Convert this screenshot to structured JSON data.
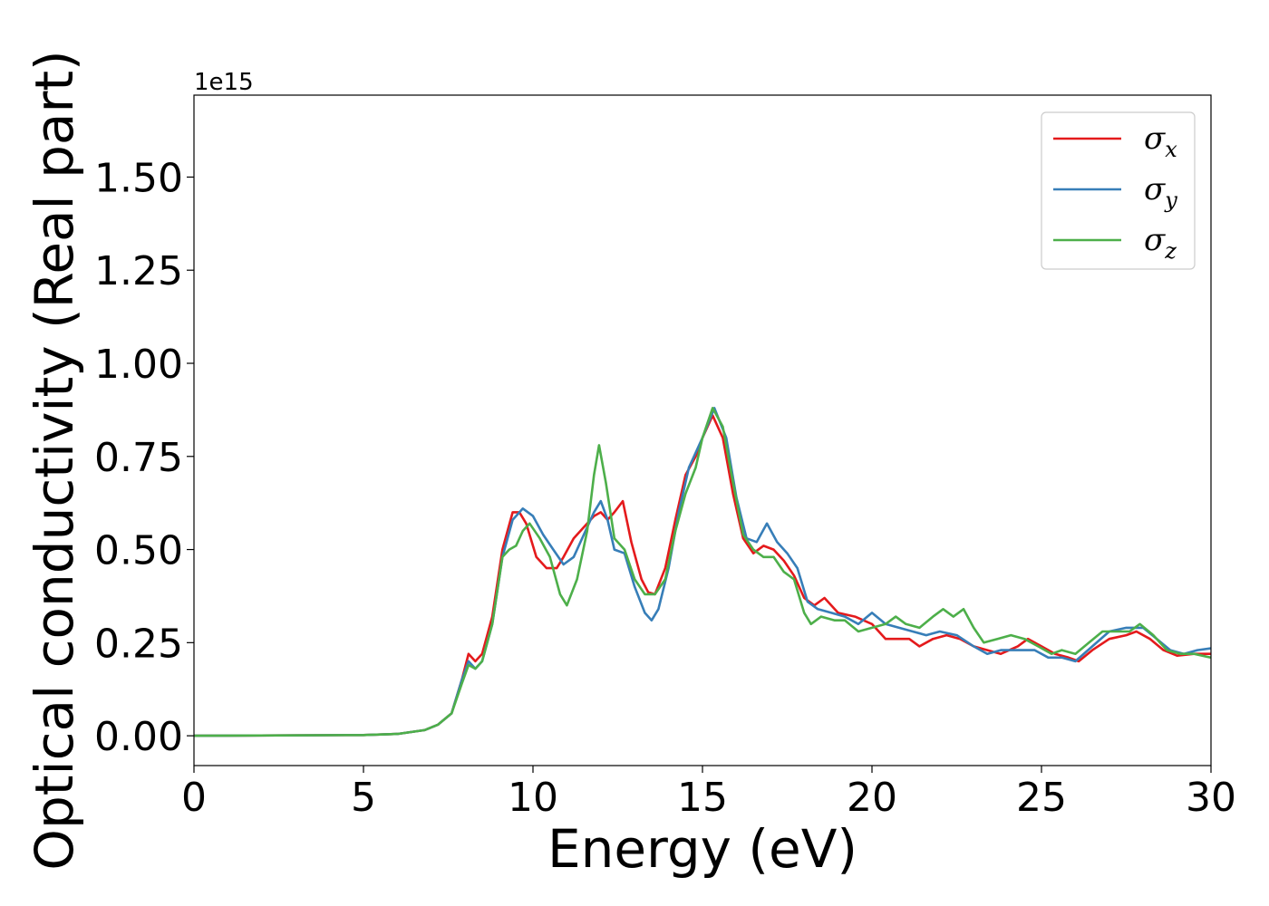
{
  "chart_data": {
    "type": "line",
    "title": "",
    "xlabel": "Energy (eV)",
    "ylabel": "Optical conductivity (Real part)",
    "y_offset_label": "1e15",
    "xlim": [
      0,
      30
    ],
    "ylim": [
      -0.08,
      1.72
    ],
    "x_ticks": [
      0,
      5,
      10,
      15,
      20,
      25,
      30
    ],
    "x_tick_labels": [
      "0",
      "5",
      "10",
      "15",
      "20",
      "25",
      "30"
    ],
    "y_ticks": [
      0.0,
      0.25,
      0.5,
      0.75,
      1.0,
      1.25,
      1.5
    ],
    "y_tick_labels": [
      "0.00",
      "0.25",
      "0.50",
      "0.75",
      "1.00",
      "1.25",
      "1.50"
    ],
    "grid": false,
    "legend_position": "top-right",
    "series": [
      {
        "name": "σx",
        "symbol": "σ",
        "subscript": "x",
        "color": "#e41a1c",
        "points": [
          [
            0,
            0
          ],
          [
            5,
            0.002
          ],
          [
            6,
            0.005
          ],
          [
            6.8,
            0.015
          ],
          [
            7.2,
            0.03
          ],
          [
            7.6,
            0.06
          ],
          [
            7.9,
            0.15
          ],
          [
            8.1,
            0.22
          ],
          [
            8.3,
            0.2
          ],
          [
            8.5,
            0.22
          ],
          [
            8.8,
            0.32
          ],
          [
            9.1,
            0.5
          ],
          [
            9.4,
            0.6
          ],
          [
            9.6,
            0.6
          ],
          [
            9.8,
            0.57
          ],
          [
            10.1,
            0.48
          ],
          [
            10.4,
            0.45
          ],
          [
            10.7,
            0.45
          ],
          [
            10.9,
            0.48
          ],
          [
            11.2,
            0.53
          ],
          [
            11.5,
            0.56
          ],
          [
            11.8,
            0.59
          ],
          [
            12.0,
            0.6
          ],
          [
            12.2,
            0.58
          ],
          [
            12.4,
            0.6
          ],
          [
            12.65,
            0.63
          ],
          [
            12.9,
            0.52
          ],
          [
            13.2,
            0.42
          ],
          [
            13.4,
            0.385
          ],
          [
            13.6,
            0.38
          ],
          [
            13.9,
            0.45
          ],
          [
            14.2,
            0.58
          ],
          [
            14.5,
            0.7
          ],
          [
            14.8,
            0.75
          ],
          [
            15.0,
            0.8
          ],
          [
            15.3,
            0.86
          ],
          [
            15.6,
            0.8
          ],
          [
            15.9,
            0.65
          ],
          [
            16.2,
            0.53
          ],
          [
            16.5,
            0.49
          ],
          [
            16.8,
            0.51
          ],
          [
            17.1,
            0.5
          ],
          [
            17.4,
            0.47
          ],
          [
            17.7,
            0.43
          ],
          [
            18.0,
            0.37
          ],
          [
            18.3,
            0.35
          ],
          [
            18.6,
            0.37
          ],
          [
            19.0,
            0.33
          ],
          [
            19.5,
            0.32
          ],
          [
            20.0,
            0.3
          ],
          [
            20.4,
            0.26
          ],
          [
            20.8,
            0.26
          ],
          [
            21.1,
            0.26
          ],
          [
            21.4,
            0.24
          ],
          [
            21.8,
            0.26
          ],
          [
            22.2,
            0.27
          ],
          [
            22.6,
            0.26
          ],
          [
            23.0,
            0.24
          ],
          [
            23.4,
            0.23
          ],
          [
            23.8,
            0.22
          ],
          [
            24.3,
            0.24
          ],
          [
            24.6,
            0.26
          ],
          [
            25.0,
            0.24
          ],
          [
            25.4,
            0.22
          ],
          [
            25.8,
            0.21
          ],
          [
            26.1,
            0.2
          ],
          [
            26.5,
            0.23
          ],
          [
            27.0,
            0.26
          ],
          [
            27.5,
            0.27
          ],
          [
            27.8,
            0.28
          ],
          [
            28.2,
            0.26
          ],
          [
            28.6,
            0.23
          ],
          [
            29.0,
            0.215
          ],
          [
            29.5,
            0.22
          ],
          [
            30.0,
            0.22
          ]
        ]
      },
      {
        "name": "σy",
        "symbol": "σ",
        "subscript": "y",
        "color": "#377eb8",
        "points": [
          [
            0,
            0
          ],
          [
            5,
            0.002
          ],
          [
            6,
            0.005
          ],
          [
            6.8,
            0.015
          ],
          [
            7.2,
            0.03
          ],
          [
            7.6,
            0.06
          ],
          [
            7.9,
            0.15
          ],
          [
            8.1,
            0.2
          ],
          [
            8.3,
            0.18
          ],
          [
            8.5,
            0.2
          ],
          [
            8.8,
            0.3
          ],
          [
            9.1,
            0.48
          ],
          [
            9.4,
            0.58
          ],
          [
            9.7,
            0.61
          ],
          [
            10.0,
            0.59
          ],
          [
            10.3,
            0.54
          ],
          [
            10.6,
            0.5
          ],
          [
            10.9,
            0.46
          ],
          [
            11.2,
            0.48
          ],
          [
            11.5,
            0.54
          ],
          [
            11.8,
            0.6
          ],
          [
            12.0,
            0.63
          ],
          [
            12.2,
            0.58
          ],
          [
            12.4,
            0.5
          ],
          [
            12.7,
            0.49
          ],
          [
            13.0,
            0.4
          ],
          [
            13.3,
            0.33
          ],
          [
            13.5,
            0.31
          ],
          [
            13.7,
            0.34
          ],
          [
            14.0,
            0.45
          ],
          [
            14.3,
            0.6
          ],
          [
            14.6,
            0.72
          ],
          [
            15.0,
            0.8
          ],
          [
            15.35,
            0.88
          ],
          [
            15.7,
            0.8
          ],
          [
            16.0,
            0.64
          ],
          [
            16.3,
            0.53
          ],
          [
            16.6,
            0.52
          ],
          [
            16.9,
            0.57
          ],
          [
            17.2,
            0.52
          ],
          [
            17.5,
            0.49
          ],
          [
            17.8,
            0.45
          ],
          [
            18.1,
            0.36
          ],
          [
            18.4,
            0.34
          ],
          [
            18.8,
            0.33
          ],
          [
            19.2,
            0.32
          ],
          [
            19.6,
            0.3
          ],
          [
            20.0,
            0.33
          ],
          [
            20.4,
            0.3
          ],
          [
            20.8,
            0.29
          ],
          [
            21.2,
            0.28
          ],
          [
            21.6,
            0.27
          ],
          [
            22.0,
            0.28
          ],
          [
            22.5,
            0.27
          ],
          [
            23.0,
            0.24
          ],
          [
            23.4,
            0.22
          ],
          [
            23.8,
            0.23
          ],
          [
            24.3,
            0.23
          ],
          [
            24.8,
            0.23
          ],
          [
            25.2,
            0.21
          ],
          [
            25.6,
            0.21
          ],
          [
            26.0,
            0.2
          ],
          [
            26.5,
            0.24
          ],
          [
            27.0,
            0.28
          ],
          [
            27.5,
            0.29
          ],
          [
            28.0,
            0.29
          ],
          [
            28.4,
            0.26
          ],
          [
            28.8,
            0.23
          ],
          [
            29.2,
            0.22
          ],
          [
            29.6,
            0.23
          ],
          [
            30.0,
            0.235
          ]
        ]
      },
      {
        "name": "σz",
        "symbol": "σ",
        "subscript": "z",
        "color": "#4daf4a",
        "points": [
          [
            0,
            0
          ],
          [
            5,
            0.002
          ],
          [
            6,
            0.005
          ],
          [
            6.8,
            0.015
          ],
          [
            7.2,
            0.03
          ],
          [
            7.6,
            0.06
          ],
          [
            7.9,
            0.14
          ],
          [
            8.1,
            0.19
          ],
          [
            8.3,
            0.18
          ],
          [
            8.5,
            0.2
          ],
          [
            8.8,
            0.3
          ],
          [
            9.1,
            0.48
          ],
          [
            9.3,
            0.5
          ],
          [
            9.5,
            0.51
          ],
          [
            9.7,
            0.55
          ],
          [
            9.9,
            0.57
          ],
          [
            10.2,
            0.53
          ],
          [
            10.5,
            0.48
          ],
          [
            10.8,
            0.38
          ],
          [
            11.0,
            0.35
          ],
          [
            11.3,
            0.42
          ],
          [
            11.6,
            0.55
          ],
          [
            11.8,
            0.7
          ],
          [
            11.95,
            0.78
          ],
          [
            12.15,
            0.68
          ],
          [
            12.4,
            0.53
          ],
          [
            12.7,
            0.5
          ],
          [
            13.0,
            0.42
          ],
          [
            13.3,
            0.38
          ],
          [
            13.6,
            0.38
          ],
          [
            13.9,
            0.42
          ],
          [
            14.2,
            0.55
          ],
          [
            14.5,
            0.65
          ],
          [
            14.8,
            0.72
          ],
          [
            15.0,
            0.8
          ],
          [
            15.3,
            0.88
          ],
          [
            15.6,
            0.83
          ],
          [
            15.9,
            0.68
          ],
          [
            16.2,
            0.54
          ],
          [
            16.5,
            0.5
          ],
          [
            16.8,
            0.48
          ],
          [
            17.1,
            0.48
          ],
          [
            17.4,
            0.44
          ],
          [
            17.7,
            0.42
          ],
          [
            18.0,
            0.33
          ],
          [
            18.2,
            0.3
          ],
          [
            18.5,
            0.32
          ],
          [
            18.9,
            0.31
          ],
          [
            19.2,
            0.31
          ],
          [
            19.6,
            0.28
          ],
          [
            20.0,
            0.29
          ],
          [
            20.4,
            0.3
          ],
          [
            20.7,
            0.32
          ],
          [
            21.0,
            0.3
          ],
          [
            21.4,
            0.29
          ],
          [
            21.8,
            0.32
          ],
          [
            22.1,
            0.34
          ],
          [
            22.4,
            0.32
          ],
          [
            22.7,
            0.34
          ],
          [
            23.0,
            0.29
          ],
          [
            23.3,
            0.25
          ],
          [
            23.7,
            0.26
          ],
          [
            24.1,
            0.27
          ],
          [
            24.5,
            0.26
          ],
          [
            24.9,
            0.24
          ],
          [
            25.3,
            0.22
          ],
          [
            25.6,
            0.23
          ],
          [
            26.0,
            0.22
          ],
          [
            26.4,
            0.25
          ],
          [
            26.8,
            0.28
          ],
          [
            27.2,
            0.28
          ],
          [
            27.6,
            0.28
          ],
          [
            27.9,
            0.3
          ],
          [
            28.3,
            0.27
          ],
          [
            28.7,
            0.23
          ],
          [
            29.1,
            0.22
          ],
          [
            29.5,
            0.22
          ],
          [
            30.0,
            0.21
          ]
        ]
      }
    ]
  }
}
